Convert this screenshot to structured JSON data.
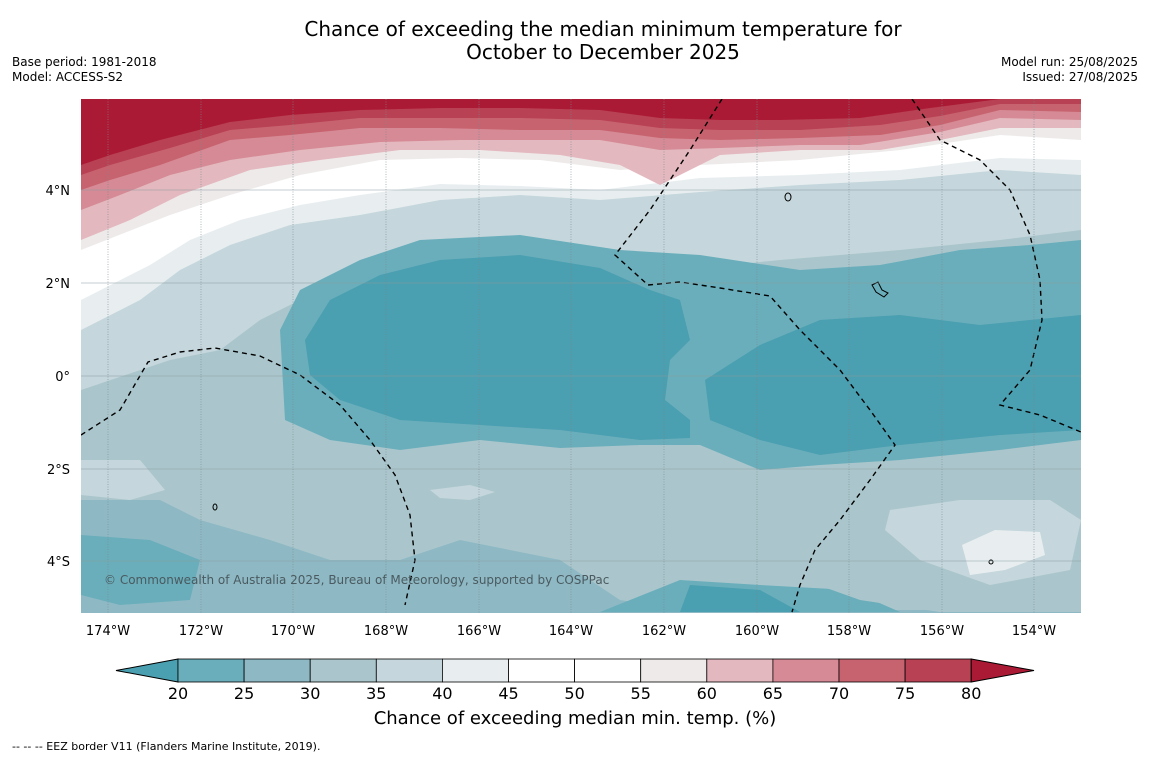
{
  "title": {
    "line1": "Chance of exceeding the median minimum temperature for",
    "line2": "October to December 2025"
  },
  "meta": {
    "base_period": "Base period: 1981-2018",
    "model": "Model: ACCESS-S2",
    "model_run": "Model run: 25/08/2025",
    "issued": "Issued: 27/08/2025"
  },
  "map": {
    "lon_ticks": [
      "174°W",
      "172°W",
      "170°W",
      "168°W",
      "166°W",
      "164°W",
      "162°W",
      "160°W",
      "158°W",
      "156°W",
      "154°W"
    ],
    "lat_ticks": [
      "4°N",
      "2°N",
      "0°",
      "2°S",
      "4°S"
    ],
    "copyright": "© Commonwealth of Australia 2025, Bureau of Meteorology, supported by COSPPac"
  },
  "colorbar": {
    "ticks": [
      "20",
      "25",
      "30",
      "35",
      "40",
      "45",
      "50",
      "55",
      "60",
      "65",
      "70",
      "75",
      "80"
    ],
    "colors": [
      "#4a9fb0",
      "#6aaebb",
      "#8eb9c4",
      "#aac6cc",
      "#c5d7dc",
      "#e8eef0",
      "#ffffff",
      "#ffffff",
      "#eeeaea",
      "#e3b8be",
      "#d58a95",
      "#c7636f",
      "#b84153",
      "#ab1a35"
    ],
    "title": "Chance of exceeding median min. temp. (%)"
  },
  "footer": {
    "legend": "--  --  -- EEZ border V11 (Flanders Marine Institute, 2019)."
  }
}
